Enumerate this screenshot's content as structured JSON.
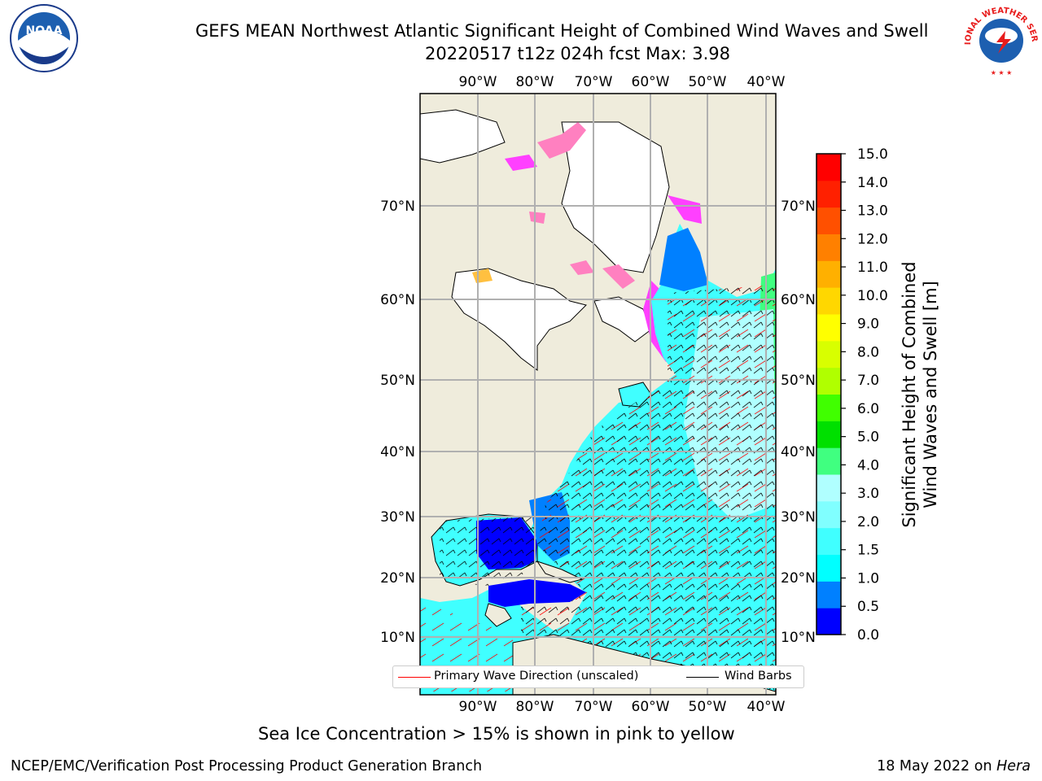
{
  "title_line1": "GEFS MEAN Northwest Atlantic Significant Height of Combined Wind Waves and Swell",
  "title_line2": "20220517 t12z 024h fcst   Max: 3.98",
  "logos": {
    "left": "noaa-logo",
    "right": "national-weather-service-logo"
  },
  "logo_text": {
    "noaa": "NOAA",
    "nws": "NATIONAL WEATHER SERVICE"
  },
  "map": {
    "lon_ticks": [
      "90°W",
      "80°W",
      "70°W",
      "60°W",
      "50°W",
      "40°W"
    ],
    "lat_ticks": [
      "70°N",
      "60°N",
      "50°N",
      "40°N",
      "30°N",
      "20°N",
      "10°N"
    ],
    "land_color": "#efecdc",
    "ice_colors": [
      "#ff40ff",
      "#ff8080",
      "#ffc040",
      "#ffff00"
    ]
  },
  "legend": {
    "wave_dir": "Primary Wave Direction (unscaled)",
    "wind_barbs": "Wind Barbs",
    "wave_dir_color": "#ff0000",
    "wind_barbs_color": "#000000"
  },
  "colorbar": {
    "label_line1": "Significant Height of Combined",
    "label_line2": "Wind Waves and Swell [m]",
    "ticks": [
      "0.0",
      "0.5",
      "1.0",
      "1.5",
      "2.0",
      "3.0",
      "4.0",
      "5.0",
      "6.0",
      "7.0",
      "8.0",
      "9.0",
      "10.0",
      "11.0",
      "12.0",
      "13.0",
      "14.0",
      "15.0"
    ],
    "colors": [
      "#0000ff",
      "#0080ff",
      "#00ffff",
      "#40ffff",
      "#80ffff",
      "#b0ffff",
      "#40ff80",
      "#00e000",
      "#40ff00",
      "#b0ff00",
      "#d8ff00",
      "#ffff00",
      "#ffd700",
      "#ffb000",
      "#ff8000",
      "#ff5000",
      "#ff2000",
      "#ff0000"
    ]
  },
  "footer_note": "Sea Ice Concentration > 15% is shown in pink to yellow",
  "credit": "NCEP/EMC/Verification Post Processing Product Generation Branch",
  "date_text": "18 May 2022 on",
  "date_host": "Hera"
}
